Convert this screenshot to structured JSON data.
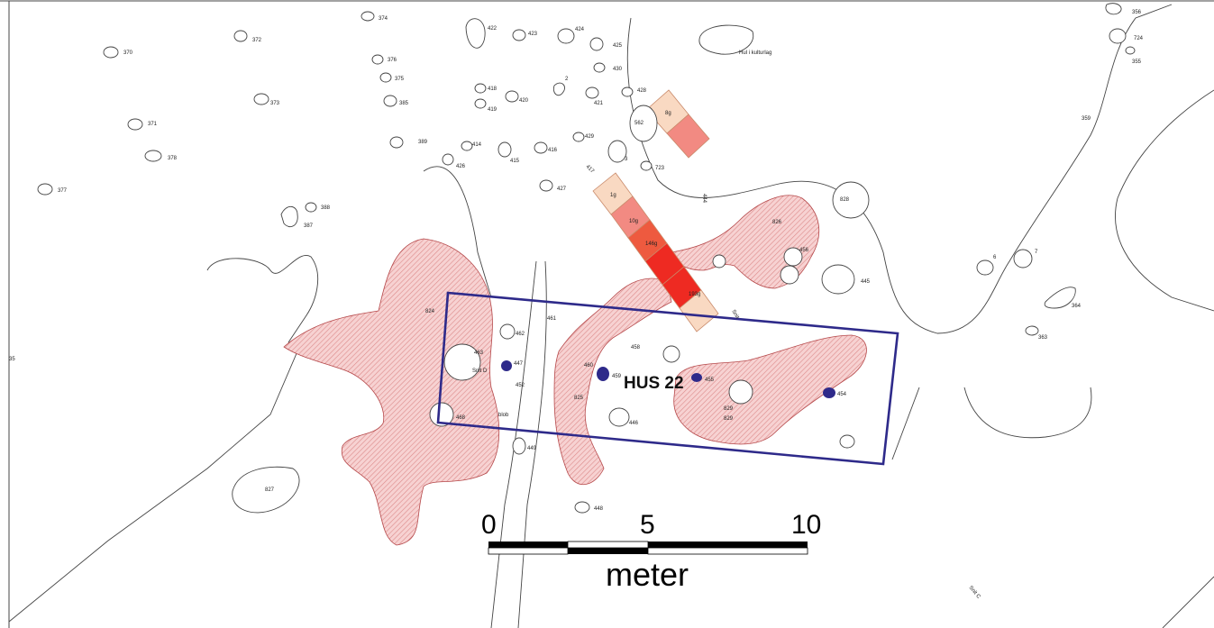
{
  "house_label": "HUS 22",
  "scale_bar": {
    "ticks": [
      "0",
      "5",
      "10"
    ],
    "unit": "meter"
  },
  "colors": {
    "hatch_fill": "#f5c9c9",
    "hatch_line": "#d98a8a",
    "house_rectangle": "#2e2a8a",
    "post_dots": "#2e2a8a",
    "sample_pale": "#f9d9c2",
    "sample_light": "#f28a82",
    "sample_mid": "#ee5a3f",
    "sample_strong": "#ee2a22"
  },
  "sample_labels": [
    "8g",
    "1g",
    "10g",
    "146g",
    "193g"
  ],
  "feature_labels": [
    "374",
    "372",
    "370",
    "376",
    "375",
    "373",
    "385",
    "371",
    "378",
    "377",
    "389",
    "388",
    "387",
    "422",
    "423",
    "424",
    "425",
    "430",
    "418",
    "419",
    "420",
    "2",
    "421",
    "428",
    "562",
    "414",
    "426",
    "415",
    "416",
    "429",
    "417",
    "3",
    "723",
    "427",
    "444",
    "828",
    "826",
    "456",
    "445",
    "824",
    "461",
    "462",
    "463",
    "447",
    "Snit D",
    "452",
    "blob",
    "468",
    "460",
    "458",
    "459",
    "825",
    "446",
    "455",
    "829",
    "829",
    "454",
    "449",
    "827",
    "448",
    "359",
    "356",
    "724",
    "355",
    "6",
    "7",
    "364",
    "363",
    "Hul i kulturlag",
    "Snit",
    "Snit C",
    "35"
  ]
}
